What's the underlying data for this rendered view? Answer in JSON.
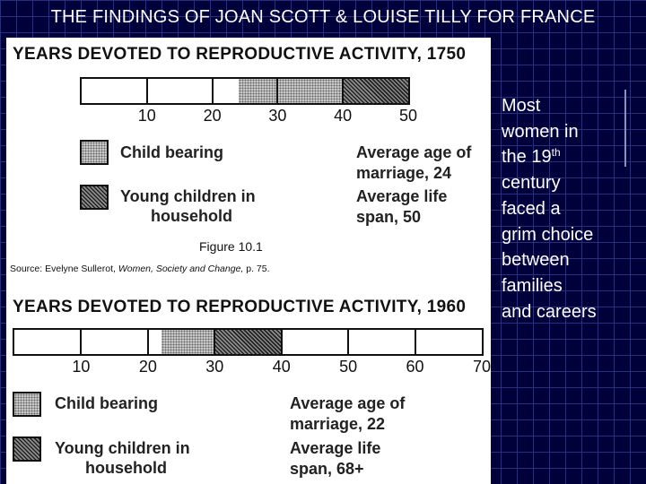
{
  "slide_title": "THE FINDINGS OF JOAN SCOTT & LOUISE TILLY FOR FRANCE",
  "side_text": {
    "line1": "Most",
    "line2": "women in",
    "line3_pre": "the 19",
    "line3_sup": "th",
    "line4": "century",
    "line5": "faced a",
    "line6": "grim choice",
    "line7": "between",
    "line8": "families",
    "line9": "and careers"
  },
  "figure1": {
    "title": "YEARS DEVOTED TO REPRODUCTIVE ACTIVITY, 1750",
    "ticks": [
      "10",
      "20",
      "30",
      "40",
      "50"
    ],
    "child_bearing_years": [
      24,
      40
    ],
    "young_children_years": [
      40,
      50
    ],
    "legend_child": "Child bearing",
    "legend_young_1": "Young children in",
    "legend_young_2": "household",
    "marriage_1": "Average age of",
    "marriage_2": "marriage, 24",
    "life_1": "Average life",
    "life_2": "span, 50",
    "caption": "Figure 10.1",
    "source_label": "Source:",
    "source_author": "Evelyne Sullerot,",
    "source_work": "Women, Society and Change,",
    "source_page": "p. 75."
  },
  "figure2": {
    "title": "YEARS DEVOTED TO REPRODUCTIVE ACTIVITY, 1960",
    "ticks": [
      "10",
      "20",
      "30",
      "40",
      "50",
      "60",
      "70"
    ],
    "child_bearing_years": [
      22,
      30
    ],
    "young_children_years": [
      30,
      40
    ],
    "legend_child": "Child bearing",
    "legend_young_1": "Young children in",
    "legend_young_2": "household",
    "marriage_1": "Average age of",
    "marriage_2": "marriage, 22",
    "life_1": "Average life",
    "life_2": "span, 68+"
  },
  "colors": {
    "slide_bg": "#00003a",
    "grid": "#2a2f7a",
    "panel": "#ffffff",
    "text": "#ffffff"
  }
}
